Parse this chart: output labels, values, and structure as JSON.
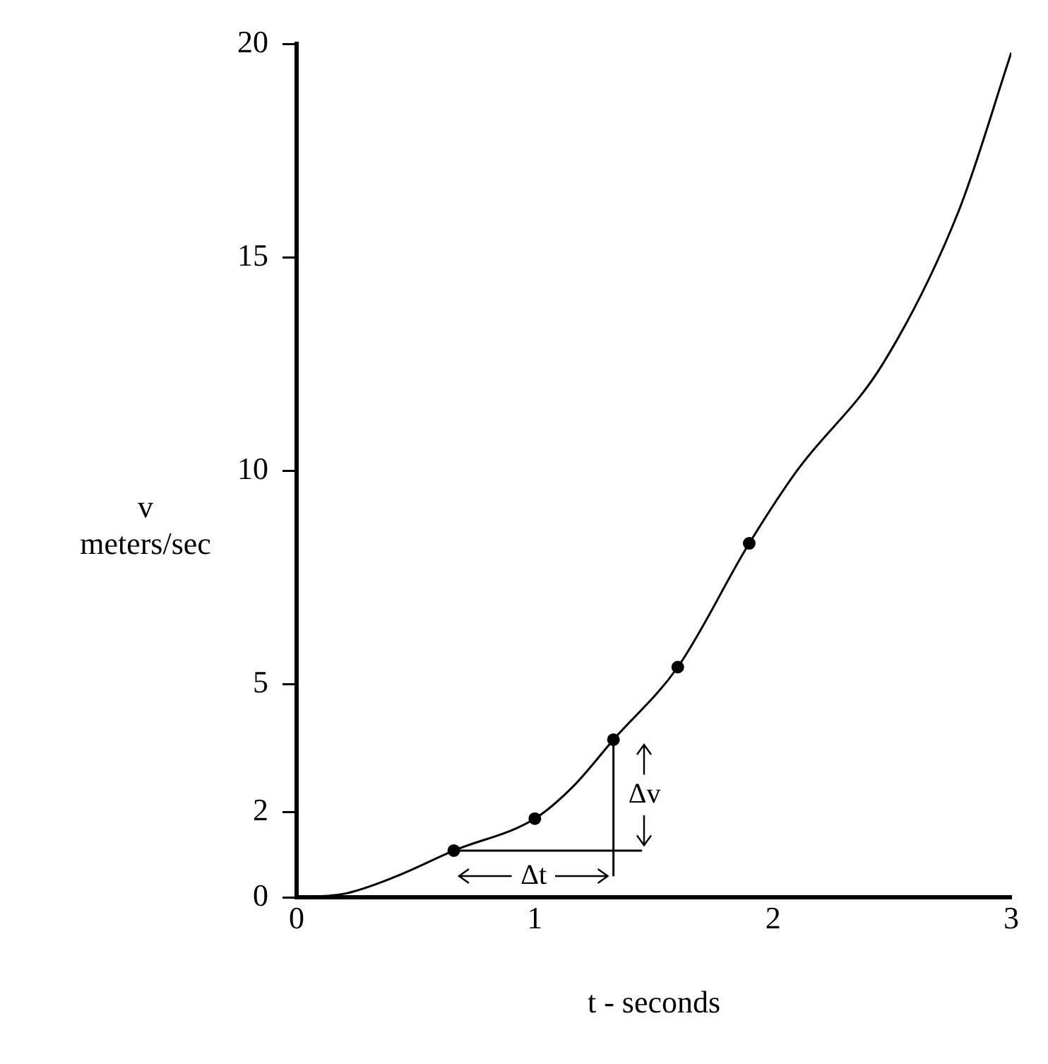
{
  "chart_data": {
    "type": "line",
    "xlabel": "t - seconds",
    "ylabel": "v\nmeters/sec",
    "xlim": [
      0,
      3
    ],
    "ylim": [
      0,
      20
    ],
    "xticks": [
      0,
      1,
      2,
      3
    ],
    "yticks": [
      0,
      2,
      5,
      10,
      15,
      20
    ],
    "series": [
      {
        "color": "#000000",
        "marker": "none",
        "x": [
          0,
          0.21,
          0.42,
          0.66,
          1,
          1.16,
          1.33,
          1.6,
          1.9,
          2.1,
          2.46,
          2.78,
          3
        ],
        "values": [
          0,
          0.1,
          0.5,
          1.1,
          1.85,
          2.6,
          3.7,
          5.4,
          8.3,
          10,
          12.5,
          16.1,
          19.8
        ]
      },
      {
        "type": "scatter",
        "color": "#000000",
        "marker": "circle",
        "x": [
          0.66,
          1,
          1.33,
          1.6,
          1.9
        ],
        "values": [
          1.1,
          1.85,
          3.7,
          5.4,
          8.3
        ]
      },
      {
        "color": "#000000",
        "marker": "none",
        "x": [
          0.66,
          1.45
        ],
        "values": [
          1.1,
          1.1
        ]
      },
      {
        "color": "#000000",
        "marker": "none",
        "x": [
          1.33,
          1.33
        ],
        "values": [
          0.5,
          3.7
        ]
      }
    ],
    "annotations": [
      {
        "text": "Δt",
        "x": 1.33,
        "y": 0.5
      },
      "Δv"
    ]
  }
}
